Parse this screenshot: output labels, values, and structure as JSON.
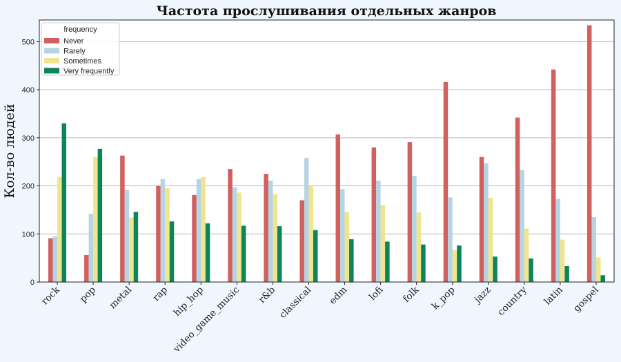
{
  "chart_data": {
    "type": "bar",
    "title": "Частота прослушивания отдельных жанров",
    "xlabel": "",
    "ylabel": "Кол-во людей",
    "ylim": [
      0,
      545
    ],
    "yticks": [
      0,
      100,
      200,
      300,
      400,
      500
    ],
    "grid": "y",
    "legend": {
      "title": "frequency",
      "placement": "top-left"
    },
    "categories": [
      "rock",
      "pop",
      "metal",
      "rap",
      "hip_hop",
      "video_game_music",
      "r&b",
      "classical",
      "edm",
      "lofi",
      "folk",
      "k_pop",
      "jazz",
      "country",
      "latin",
      "gospel"
    ],
    "series": [
      {
        "name": "Never",
        "color": "#d1605e",
        "values": [
          91,
          56,
          263,
          200,
          181,
          235,
          225,
          170,
          307,
          280,
          291,
          416,
          260,
          342,
          442,
          534
        ]
      },
      {
        "name": "Rarely",
        "color": "#b5d5e4",
        "values": [
          95,
          142,
          192,
          214,
          214,
          197,
          211,
          258,
          193,
          211,
          221,
          176,
          247,
          233,
          173,
          135
        ]
      },
      {
        "name": "Sometimes",
        "color": "#efe58f",
        "values": [
          219,
          260,
          134,
          195,
          218,
          186,
          183,
          200,
          146,
          160,
          145,
          66,
          175,
          111,
          88,
          51
        ]
      },
      {
        "name": "Very frequently",
        "color": "#0e8559",
        "values": [
          330,
          277,
          146,
          126,
          122,
          117,
          116,
          108,
          89,
          84,
          78,
          76,
          53,
          49,
          33,
          14
        ]
      }
    ]
  }
}
